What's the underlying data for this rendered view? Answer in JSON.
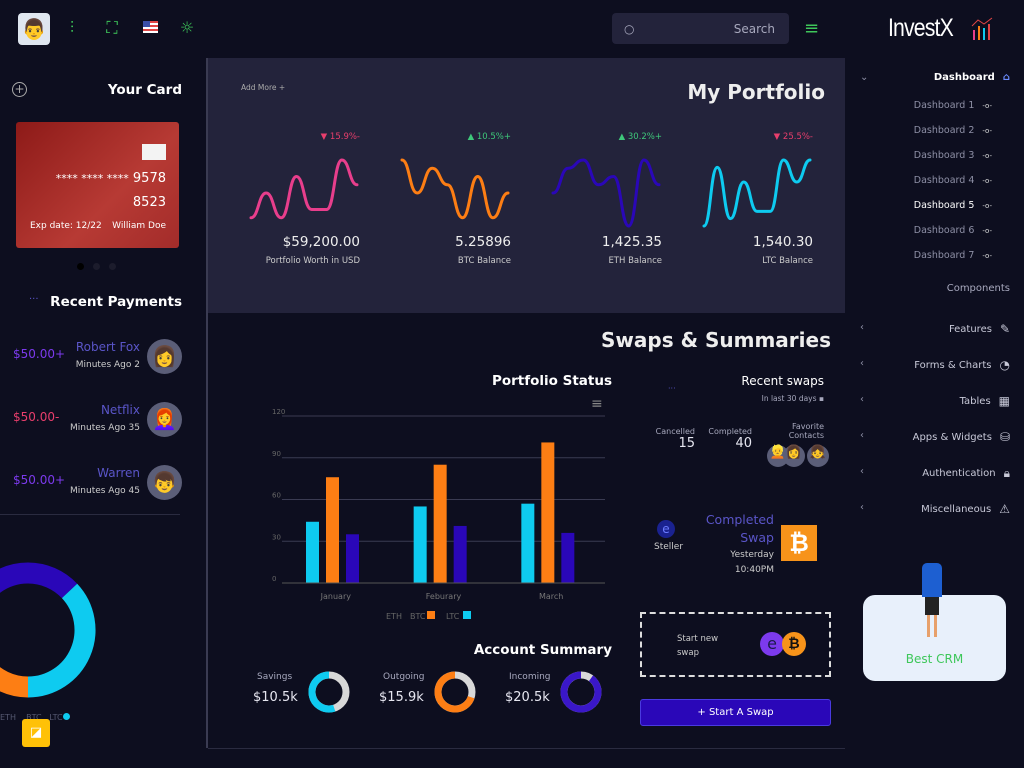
{
  "topbar": {
    "search_placeholder": "Search",
    "icons": [
      "user-avatar",
      "sliders-icon",
      "fullscreen-icon",
      "us-flag-icon",
      "sun-icon"
    ],
    "menu_icon": "hamburger-icon"
  },
  "brand": {
    "name": "InvestX"
  },
  "card": {
    "title": "Your Card",
    "number_masked": "**** **** ****",
    "number_end1": "9578",
    "number_end2": "8523",
    "exp": "Exp date: 12/22",
    "holder": "William Doe"
  },
  "payments": {
    "title": "Recent Payments",
    "items": [
      {
        "amount": "$50.00+",
        "name": "Robert Fox",
        "time": "Minutes Ago 2",
        "positive": true
      },
      {
        "amount": "$50.00-",
        "name": "Netflix",
        "time": "Minutes Ago 35",
        "positive": false
      },
      {
        "amount": "$50.00+",
        "name": "Warren",
        "time": "Minutes Ago 45",
        "positive": true
      }
    ]
  },
  "left_donut": {
    "legend": [
      "ETH",
      "BTC",
      "LTC"
    ],
    "values": [
      13,
      37,
      30,
      20
    ],
    "colors": [
      "#2a07b8",
      "#0ecbf0",
      "#fd7e14",
      "#2a07b8"
    ]
  },
  "portfolio": {
    "title": "My Portfolio",
    "add_more": "Add More +",
    "items": [
      {
        "change": "15.9%-",
        "up": false,
        "value": "$59,200.00",
        "label": "Portfolio Worth in USD",
        "color": "#e83e8c",
        "spark": [
          1,
          4,
          1,
          6,
          2,
          2,
          8,
          5
        ]
      },
      {
        "change": "10.5%+",
        "up": true,
        "value": "5.25896",
        "label": "BTC Balance",
        "color": "#fd7e14",
        "spark": [
          8,
          4,
          7,
          5,
          1,
          6,
          1,
          4
        ]
      },
      {
        "change": "30.2%+",
        "up": true,
        "value": "1,425.35",
        "label": "ETH Balance",
        "color": "#2a07b8",
        "spark": [
          4,
          7,
          8,
          5,
          6,
          0,
          8,
          5
        ]
      },
      {
        "change": "25.5%-",
        "up": false,
        "value": "1,540.30",
        "label": "LTC Balance",
        "color": "#0ecbf0",
        "spark": [
          0,
          8,
          1,
          6,
          2,
          2,
          9,
          6,
          9
        ]
      }
    ]
  },
  "swaps_title": "Swaps & Summaries",
  "chart_data": {
    "type": "bar",
    "title": "Portfolio Status",
    "categories": [
      "January",
      "Feburary",
      "March"
    ],
    "ylim": [
      0,
      120
    ],
    "yticks": [
      0,
      30,
      60,
      90,
      120
    ],
    "grid": true,
    "legend": "bottom",
    "series": [
      {
        "name": "LTC",
        "color": "#0ecbf0",
        "values": [
          44,
          55,
          57
        ]
      },
      {
        "name": "BTC",
        "color": "#fd7e14",
        "values": [
          76,
          85,
          101
        ]
      },
      {
        "name": "ETH",
        "color": "#2a07b8",
        "values": [
          35,
          41,
          36
        ]
      }
    ],
    "legend_entries": [
      "ETH",
      "BTC",
      "LTC"
    ]
  },
  "account": {
    "title": "Account Summary",
    "items": [
      {
        "label": "Savings",
        "value": "$10.5k",
        "percent": 55,
        "color": "#0ecbf0"
      },
      {
        "label": "Outgoing",
        "value": "$15.9k",
        "percent": 70,
        "color": "#fd7e14"
      },
      {
        "label": "Incoming",
        "value": "$20.5k",
        "percent": 90,
        "color": "#3a17c8"
      }
    ]
  },
  "recent_swaps": {
    "title": "Recent swaps",
    "subtitle": "In last 30 days",
    "cancelled_label": "Cancelled",
    "cancelled": "15",
    "completed_label": "Completed",
    "completed": "40",
    "contacts_label": "Favorite Contacts",
    "swap_title": "Completed Swap",
    "swap_from": "Steller",
    "swap_time1": "Yesterday",
    "swap_time2": "10:40PM",
    "new_swap": "Start new swap",
    "start_button": "+ Start A Swap"
  },
  "sidebar": {
    "main": "Dashboard",
    "subs": [
      "Dashboard 1",
      "Dashboard 2",
      "Dashboard 3",
      "Dashboard 4",
      "Dashboard 5",
      "Dashboard 6",
      "Dashboard 7"
    ],
    "active_sub": 4,
    "section": "Components",
    "items": [
      {
        "label": "Features",
        "icon": "edit-icon"
      },
      {
        "label": "Forms & Charts",
        "icon": "pie-chart-icon"
      },
      {
        "label": "Tables",
        "icon": "grid-icon"
      },
      {
        "label": "Apps & Widgets",
        "icon": "database-icon"
      },
      {
        "label": "Authentication",
        "icon": "lock-icon"
      },
      {
        "label": "Miscellaneous",
        "icon": "warning-icon"
      }
    ]
  },
  "promo": {
    "label": "Best CRM"
  }
}
